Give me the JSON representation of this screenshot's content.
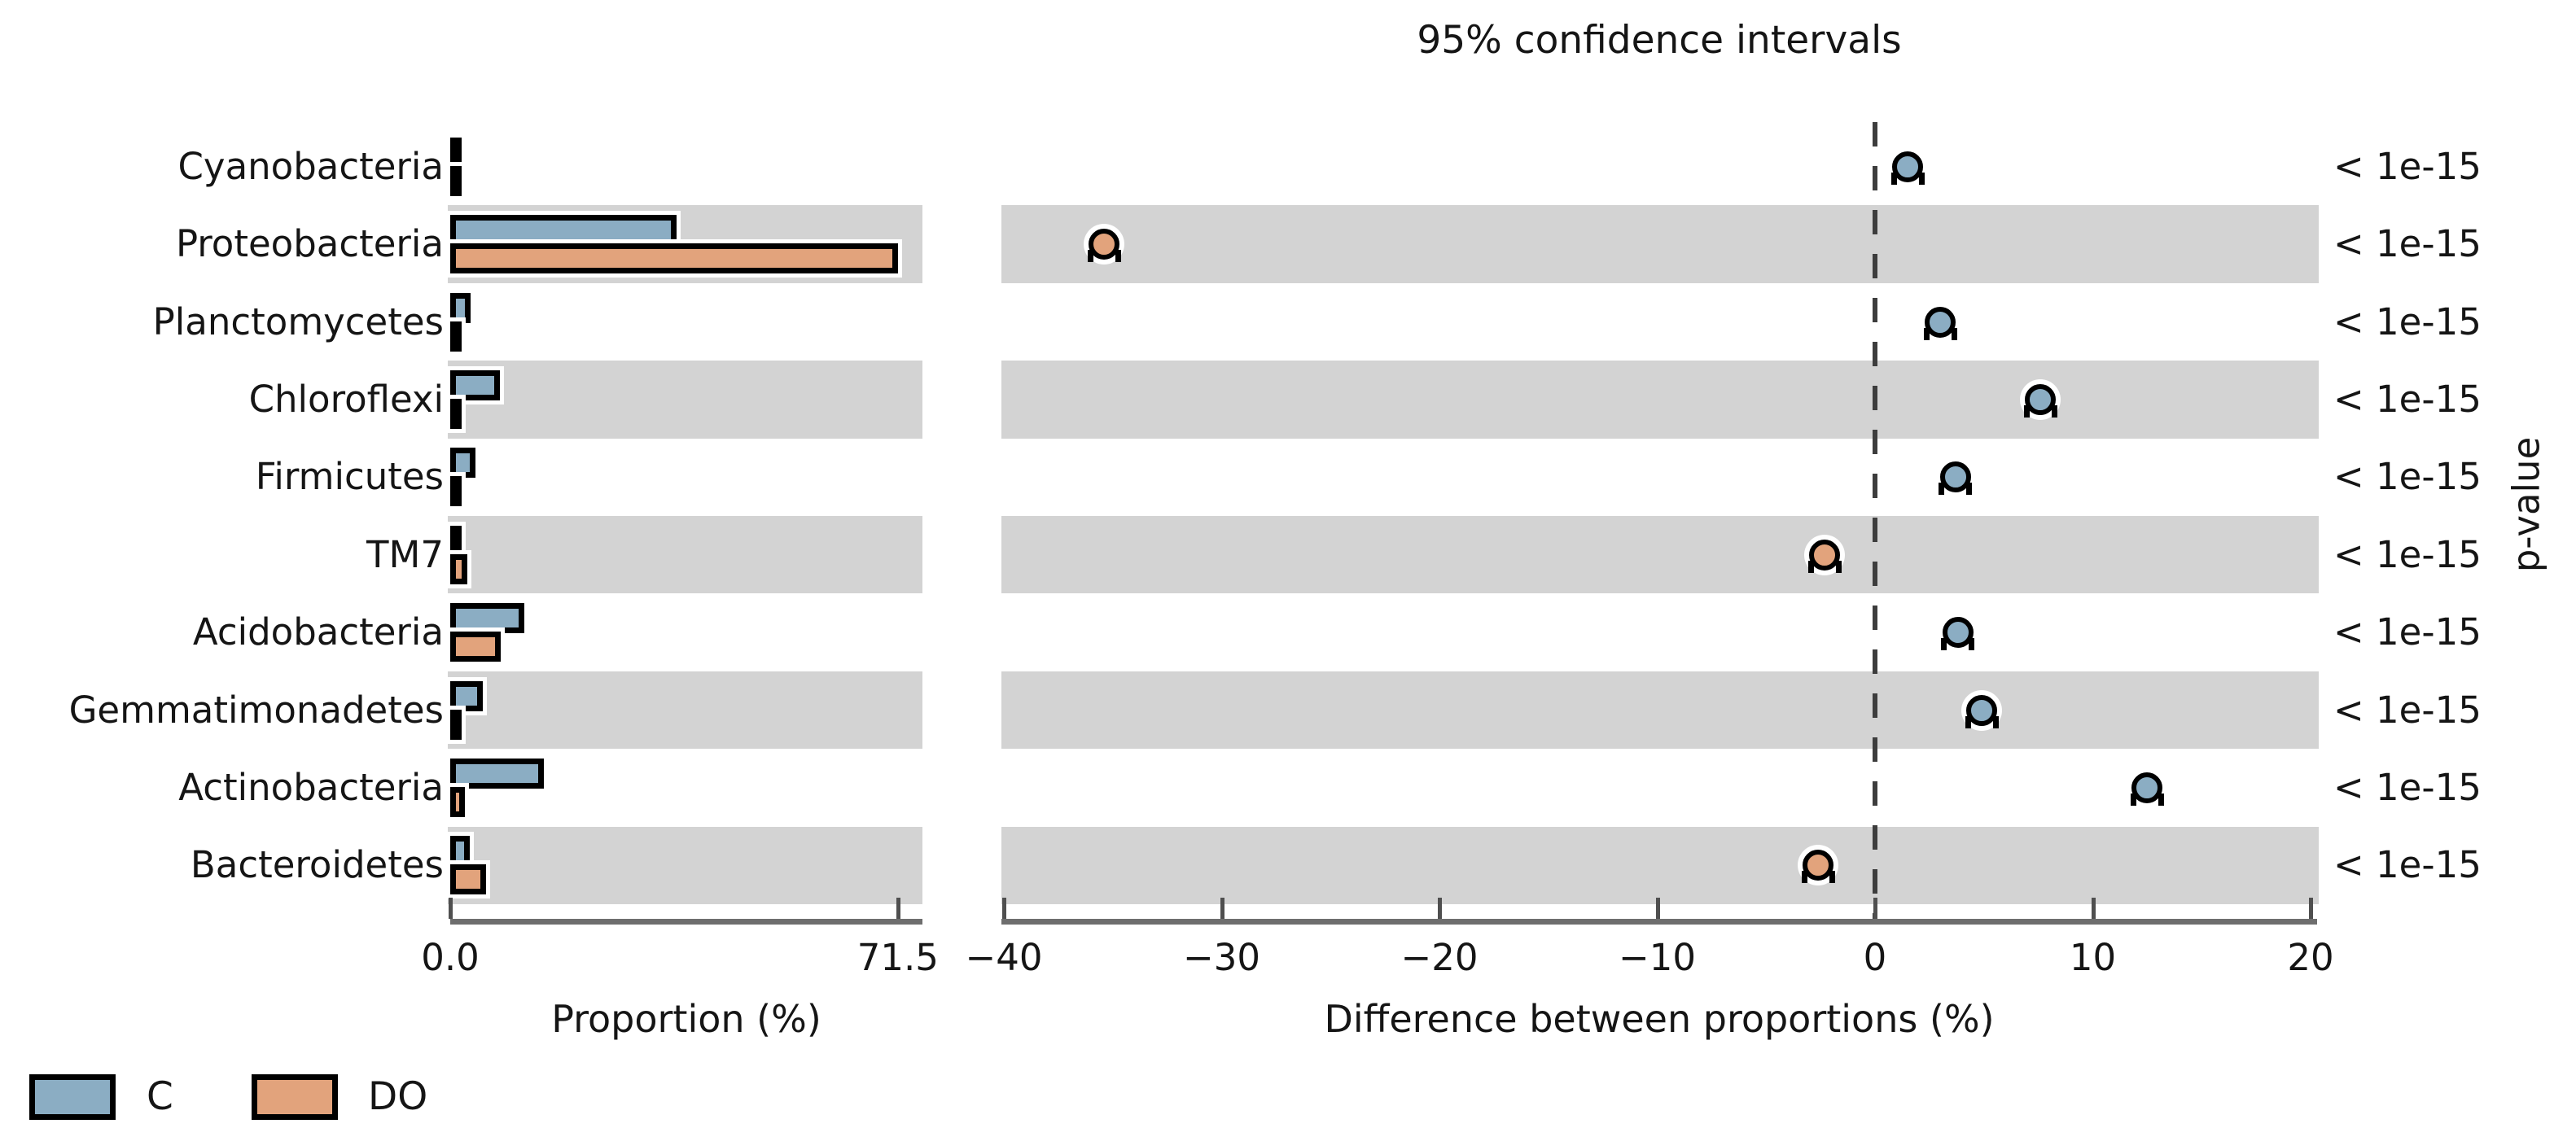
{
  "title": "95% confidence intervals",
  "colors": {
    "c_fill": "#8badc3",
    "do_fill": "#e2a37c",
    "band": "#d3d3d3",
    "axis": "#6e6e6e",
    "zero_line": "#3d3d3d",
    "bar_edge": "#000000",
    "halo": "#ffffff"
  },
  "left_panel": {
    "xlabel": "Proportion (%)",
    "ticks": [
      {
        "label": "0.0",
        "v": 0
      },
      {
        "label": "71.5",
        "v": 71.5
      }
    ]
  },
  "right_panel": {
    "xlabel": "Difference between proportions (%)",
    "ticks": [
      {
        "label": "−40",
        "v": -40
      },
      {
        "label": "−30",
        "v": -30
      },
      {
        "label": "−20",
        "v": -20
      },
      {
        "label": "−10",
        "v": -10
      },
      {
        "label": "0",
        "v": 0
      },
      {
        "label": "10",
        "v": 10
      },
      {
        "label": "20",
        "v": 20
      }
    ]
  },
  "pvalue_axis_label": "p-value",
  "legend": [
    {
      "label": "C",
      "color": "#8badc3"
    },
    {
      "label": "DO",
      "color": "#e2a37c"
    }
  ],
  "rows": [
    {
      "taxon": "Cyanobacteria",
      "c": 1.7,
      "do": 0.2,
      "diff": 1.5,
      "p": "< 1e-15",
      "shaded": false
    },
    {
      "taxon": "Proteobacteria",
      "c": 36.1,
      "do": 71.5,
      "diff": -35.4,
      "p": "< 1e-15",
      "shaded": true
    },
    {
      "taxon": "Planctomycetes",
      "c": 3.2,
      "do": 0.2,
      "diff": 3.0,
      "p": "< 1e-15",
      "shaded": false
    },
    {
      "taxon": "Chloroflexi",
      "c": 7.9,
      "do": 0.3,
      "diff": 7.6,
      "p": "< 1e-15",
      "shaded": true
    },
    {
      "taxon": "Firmicutes",
      "c": 4.0,
      "do": 0.3,
      "diff": 3.7,
      "p": "< 1e-15",
      "shaded": false
    },
    {
      "taxon": "TM7",
      "c": 0.4,
      "do": 2.7,
      "diff": -2.3,
      "p": "< 1e-15",
      "shaded": true
    },
    {
      "taxon": "Acidobacteria",
      "c": 11.8,
      "do": 8.0,
      "diff": 3.8,
      "p": "< 1e-15",
      "shaded": false
    },
    {
      "taxon": "Gemmatimonadetes",
      "c": 5.2,
      "do": 0.3,
      "diff": 4.9,
      "p": "< 1e-15",
      "shaded": true
    },
    {
      "taxon": "Actinobacteria",
      "c": 14.9,
      "do": 2.4,
      "diff": 12.5,
      "p": "< 1e-15",
      "shaded": false
    },
    {
      "taxon": "Bacteroidetes",
      "c": 3.1,
      "do": 5.7,
      "diff": -2.6,
      "p": "< 1e-15",
      "shaded": true
    }
  ],
  "chart_data": [
    {
      "type": "bar",
      "orientation": "horizontal",
      "categories": [
        "Cyanobacteria",
        "Proteobacteria",
        "Planctomycetes",
        "Chloroflexi",
        "Firmicutes",
        "TM7",
        "Acidobacteria",
        "Gemmatimonadetes",
        "Actinobacteria",
        "Bacteroidetes"
      ],
      "series": [
        {
          "name": "C",
          "color": "#8badc3",
          "values": [
            1.7,
            36.1,
            3.2,
            7.9,
            4.0,
            0.4,
            11.8,
            5.2,
            14.9,
            3.1
          ]
        },
        {
          "name": "DO",
          "color": "#e2a37c",
          "values": [
            0.2,
            71.5,
            0.2,
            0.3,
            0.3,
            2.7,
            8.0,
            0.3,
            2.4,
            5.7
          ]
        }
      ],
      "xlabel": "Proportion (%)",
      "ylabel": "",
      "xlim": [
        0,
        75.4
      ],
      "xticks": [
        0.0,
        71.5
      ],
      "grid": false,
      "legend_position": "bottom-left",
      "shaded_row_stripes": true
    },
    {
      "type": "scatter",
      "title": "95% confidence intervals",
      "categories": [
        "Cyanobacteria",
        "Proteobacteria",
        "Planctomycetes",
        "Chloroflexi",
        "Firmicutes",
        "TM7",
        "Acidobacteria",
        "Gemmatimonadetes",
        "Actinobacteria",
        "Bacteroidetes"
      ],
      "values": [
        1.5,
        -35.4,
        3.0,
        7.6,
        3.7,
        -2.3,
        3.8,
        4.9,
        12.5,
        -2.6
      ],
      "marker_colors_rule": "blue C marker when difference > 0, orange DO marker when difference < 0",
      "xlabel": "Difference between proportions (%)",
      "xlim": [
        -40,
        20.3
      ],
      "xticks": [
        -40,
        -30,
        -20,
        -10,
        0,
        10,
        20
      ],
      "zero_line": "dashed",
      "right_axis_label": "p-value",
      "p_values": [
        "< 1e-15",
        "< 1e-15",
        "< 1e-15",
        "< 1e-15",
        "< 1e-15",
        "< 1e-15",
        "< 1e-15",
        "< 1e-15",
        "< 1e-15",
        "< 1e-15"
      ],
      "grid": false
    }
  ]
}
